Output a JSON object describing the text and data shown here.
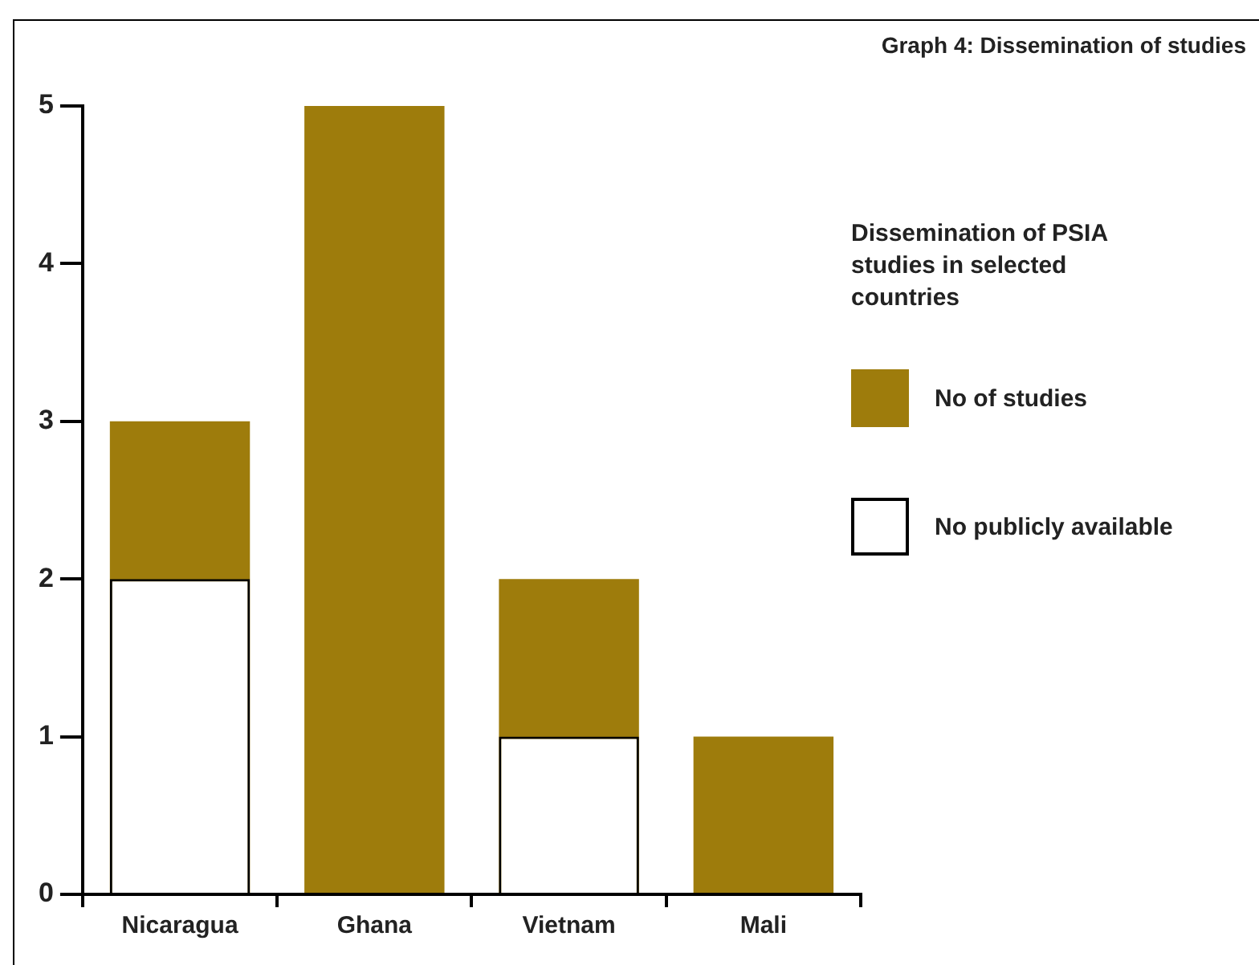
{
  "chart_data": {
    "type": "bar",
    "title": "Graph 4: Dissemination of studies",
    "legend_title": "Dissemination of PSIA studies in selected countries",
    "categories": [
      "Nicaragua",
      "Ghana",
      "Vietnam",
      "Mali"
    ],
    "series": [
      {
        "name": "No of studies",
        "color": "#9e7c0c",
        "values": [
          3,
          5,
          2,
          1
        ]
      },
      {
        "name": "No publicly available",
        "color": "#ffffff",
        "values": [
          2,
          0,
          1,
          0
        ]
      }
    ],
    "ylim": [
      0,
      5
    ],
    "yticks": [
      0,
      1,
      2,
      3,
      4,
      5
    ],
    "grid": false,
    "legend": "right"
  }
}
